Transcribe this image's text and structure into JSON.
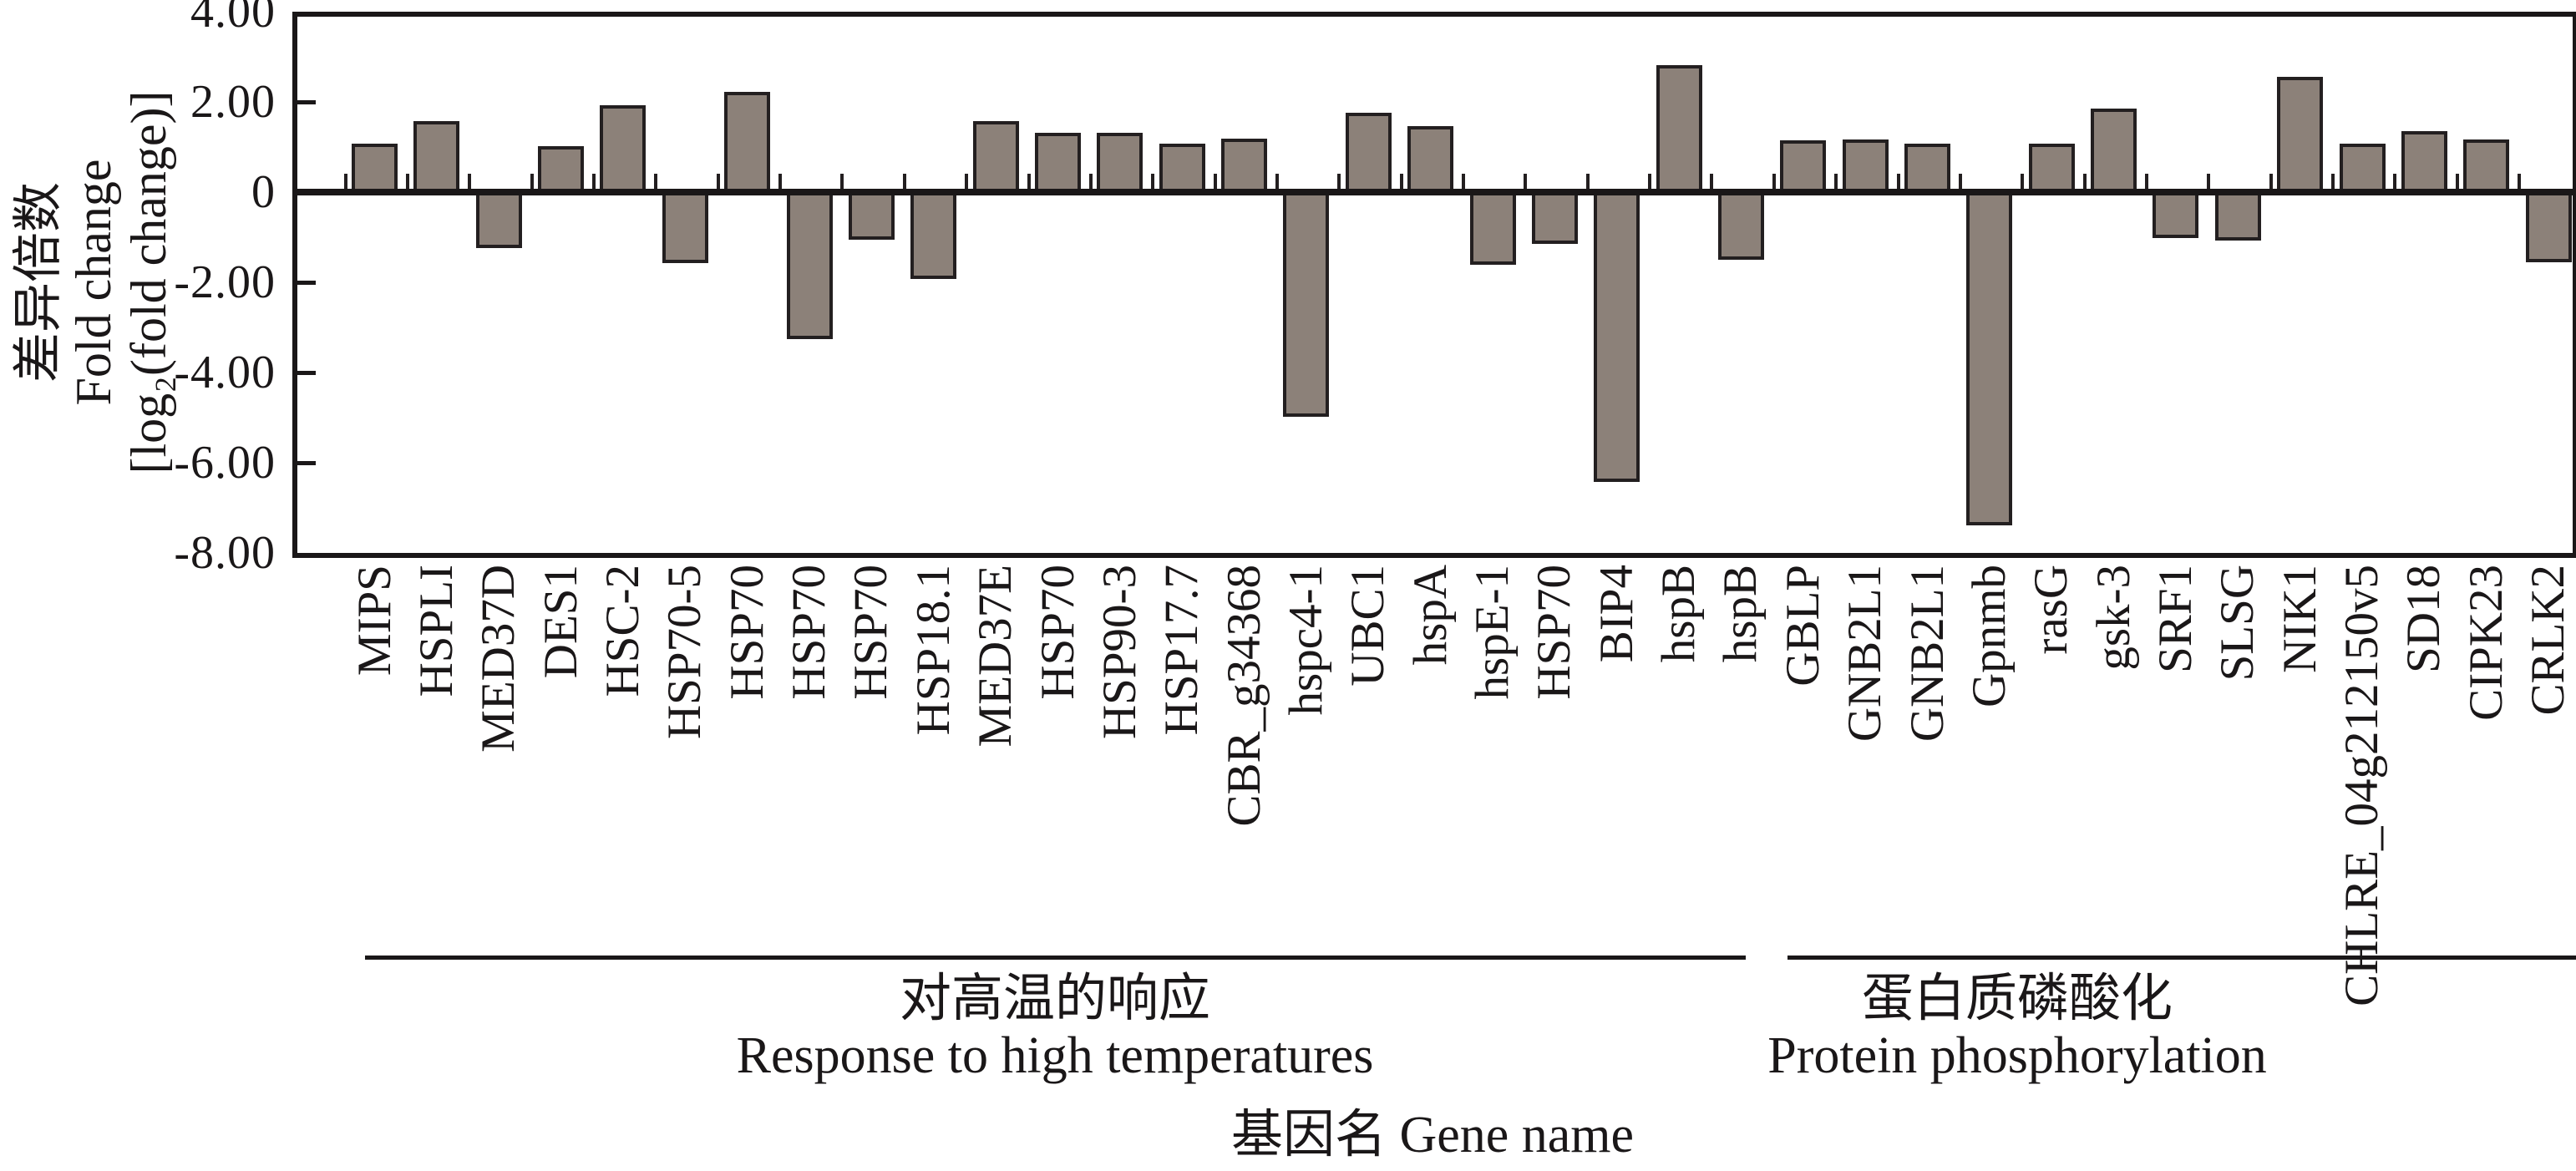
{
  "chart_data": {
    "type": "bar",
    "title": "",
    "xlabel": "基因名 Gene name",
    "ylabel_lines": "差异倍数\nFold change\n[log₂(fold change)]",
    "ylim": [
      -8,
      4
    ],
    "grid": false,
    "legend": "none",
    "yticks": [
      {
        "value": 4,
        "label": "4.00"
      },
      {
        "value": 2,
        "label": "2.00"
      },
      {
        "value": 0,
        "label": "0"
      },
      {
        "value": -2,
        "label": "-2.00"
      },
      {
        "value": -4,
        "label": "-4.00"
      },
      {
        "value": -6,
        "label": "-6.00"
      },
      {
        "value": -8,
        "label": "-8.00"
      }
    ],
    "categories": [
      "MIPS",
      "HSPLI",
      "MED37D",
      "DES1",
      "HSC-2",
      "HSP70-5",
      "HSP70",
      "HSP70",
      "HSP70",
      "HSP18.1",
      "MED37E",
      "HSP70",
      "HSP90-3",
      "HSP17.7",
      "CBR_g34368",
      "hspc4-1",
      "UBC1",
      "hspA",
      "hspE-1",
      "HSP70",
      "BIP4",
      "hspB",
      "hspB",
      "GBLP",
      "GNB2L1",
      "GNB2L1",
      "Gpnmb",
      "rasG",
      "gsk-3",
      "SRF1",
      "SLSG",
      "NIK1",
      "CHLRE_04g212150v5",
      "SD18",
      "CIPK23",
      "CRLK2"
    ],
    "values": [
      1.08,
      1.58,
      -1.24,
      1.02,
      1.92,
      -1.58,
      2.23,
      -3.25,
      -1.05,
      -1.92,
      1.58,
      1.31,
      1.31,
      1.07,
      1.18,
      -4.98,
      1.76,
      1.46,
      -1.61,
      -1.15,
      -6.42,
      2.82,
      -1.49,
      1.15,
      1.16,
      1.07,
      -7.38,
      1.07,
      1.86,
      -1.02,
      -1.07,
      2.55,
      1.07,
      1.36,
      1.16,
      -1.55
    ],
    "groups": [
      {
        "label_zh": "对高温的响应",
        "label_en": "Response to high temperatures",
        "start": 0,
        "end": 22
      },
      {
        "label_zh": "蛋白质磷酸化",
        "label_en": "Protein phosphorylation",
        "start": 23,
        "end": 35
      }
    ],
    "bar_color": "#8c8179",
    "bar_border_color": "#231f20"
  }
}
